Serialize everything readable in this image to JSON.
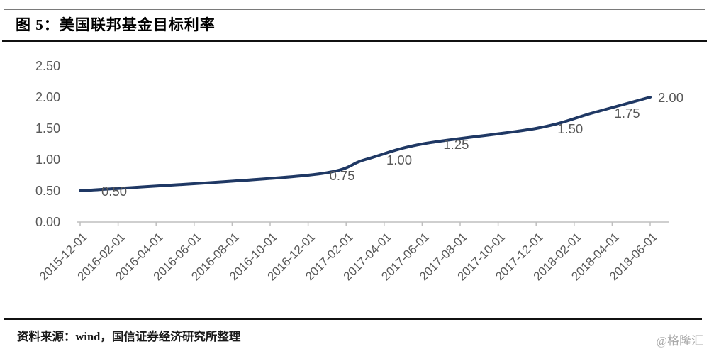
{
  "figure": {
    "title": "图 5：美国联邦基金目标利率",
    "source": "资料来源：wind，国信证券经济研究所整理",
    "watermark": "@格隆汇"
  },
  "chart_data": {
    "type": "line",
    "title": "美国联邦基金目标利率",
    "xlabel": "",
    "ylabel": "",
    "ylim": [
      0.0,
      2.5
    ],
    "grid": false,
    "legend": "none",
    "y_ticks": [
      "0.00",
      "0.50",
      "1.00",
      "1.50",
      "2.00",
      "2.50"
    ],
    "x_tick_labels": [
      "2015-12-01",
      "2016-02-01",
      "2016-04-01",
      "2016-06-01",
      "2016-08-01",
      "2016-10-01",
      "2016-12-01",
      "2017-02-01",
      "2017-04-01",
      "2017-06-01",
      "2017-08-01",
      "2017-10-01",
      "2017-12-01",
      "2018-02-01",
      "2018-04-01",
      "2018-06-01"
    ],
    "x_range": [
      "2015-12-01",
      "2018-06-01"
    ],
    "colors": {
      "line": "#1f3864",
      "labels": "#595959",
      "axis": "#bfbfbf"
    },
    "series": [
      {
        "name": "美国联邦基金目标利率",
        "smoothed": true,
        "points": [
          {
            "date": "2015-12-01",
            "value": 0.5,
            "label": "0.50"
          },
          {
            "date": "2016-12-01",
            "value": 0.75,
            "label": "0.75"
          },
          {
            "date": "2017-03-01",
            "value": 1.0,
            "label": "1.00"
          },
          {
            "date": "2017-06-01",
            "value": 1.25,
            "label": "1.25"
          },
          {
            "date": "2017-12-01",
            "value": 1.5,
            "label": "1.50"
          },
          {
            "date": "2018-03-01",
            "value": 1.75,
            "label": "1.75"
          },
          {
            "date": "2018-06-01",
            "value": 2.0,
            "label": "2.00"
          }
        ]
      }
    ]
  }
}
